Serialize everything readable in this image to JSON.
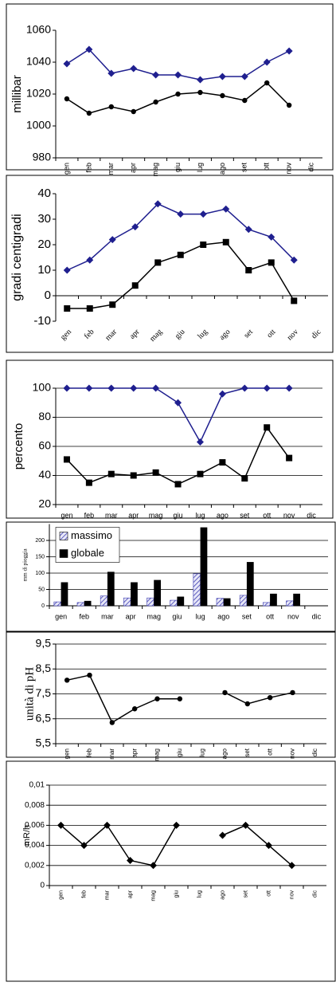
{
  "chart_data": [
    {
      "type": "line",
      "ylabel": "millibar",
      "categories": [
        "gen",
        "feb",
        "mar",
        "apr",
        "mag",
        "giu",
        "lug",
        "ago",
        "set",
        "ott",
        "nov",
        "dic"
      ],
      "ylim": [
        980,
        1060
      ],
      "yticks": [
        980,
        1000,
        1020,
        1040,
        1060
      ],
      "grid": false,
      "series": [
        {
          "color": "#1f1f8f",
          "marker": "diamond",
          "values": [
            1039,
            1048,
            1033,
            1036,
            1032,
            1032,
            1029,
            1031,
            1031,
            1040,
            1047,
            null
          ]
        },
        {
          "color": "#000000",
          "marker": "circle",
          "values": [
            1017,
            1008,
            1012,
            1009,
            1015,
            1020,
            1021,
            1019,
            1016,
            1027,
            1013,
            null
          ]
        }
      ]
    },
    {
      "type": "line",
      "ylabel": "gradi centigradi",
      "categories": [
        "gen",
        "feb",
        "mar",
        "apr",
        "mag",
        "giu",
        "lug",
        "ago",
        "set",
        "ott",
        "nov",
        "dic"
      ],
      "ylim": [
        -10,
        40
      ],
      "yticks": [
        -10,
        0,
        10,
        20,
        30,
        40
      ],
      "grid": false,
      "series": [
        {
          "color": "#1f1f8f",
          "marker": "diamond",
          "values": [
            10,
            14,
            22,
            27,
            36,
            32,
            32,
            34,
            26,
            23,
            14,
            null
          ]
        },
        {
          "color": "#000000",
          "marker": "square",
          "values": [
            -5,
            -5,
            -3.5,
            4,
            13,
            16,
            20,
            21,
            10,
            13,
            -2,
            null
          ]
        }
      ]
    },
    {
      "type": "line",
      "ylabel": "percento",
      "categories": [
        "gen",
        "feb",
        "mar",
        "apr",
        "mag",
        "giu",
        "lug",
        "ago",
        "set",
        "ott",
        "nov",
        "dic"
      ],
      "ylim": [
        20,
        100
      ],
      "yticks": [
        20,
        40,
        60,
        80,
        100
      ],
      "grid": true,
      "series": [
        {
          "color": "#1f1f8f",
          "marker": "diamond",
          "values": [
            100,
            100,
            100,
            100,
            100,
            90,
            63,
            96,
            100,
            100,
            100,
            null
          ]
        },
        {
          "color": "#000000",
          "marker": "square",
          "values": [
            51,
            35,
            41,
            40,
            42,
            34,
            41,
            49,
            38,
            73,
            52,
            null
          ]
        }
      ]
    },
    {
      "type": "bar",
      "ylabel": "mm di pioggia",
      "categories": [
        "gen",
        "feb",
        "mar",
        "apr",
        "mag",
        "giu",
        "lug",
        "ago",
        "set",
        "ott",
        "nov",
        "dic"
      ],
      "ylim": [
        0,
        250
      ],
      "yticks": [
        0,
        50,
        100,
        150,
        200
      ],
      "grid": true,
      "legend": "top-left",
      "series": [
        {
          "name": "massimo",
          "color": "#3b3bb0",
          "pattern": "hatch",
          "values": [
            12,
            10,
            30,
            24,
            24,
            17,
            98,
            23,
            32,
            10,
            15,
            null
          ]
        },
        {
          "name": "globale",
          "color": "#000000",
          "values": [
            72,
            15,
            104,
            72,
            79,
            28,
            240,
            23,
            134,
            37,
            37,
            null
          ]
        }
      ]
    },
    {
      "type": "line",
      "ylabel": "unità di pH",
      "categories": [
        "gen",
        "feb",
        "mar",
        "apr",
        "mag",
        "giu",
        "lug",
        "ago",
        "set",
        "ott",
        "nov",
        "dic"
      ],
      "ylim": [
        5.5,
        9.5
      ],
      "yticks": [
        {
          "value": 5.5,
          "label": "5,5"
        },
        {
          "value": 6.5,
          "label": "6,5"
        },
        {
          "value": 7.5,
          "label": "7,5"
        },
        {
          "value": 8.5,
          "label": "8,5"
        },
        {
          "value": 9.5,
          "label": "9,5"
        }
      ],
      "grid": true,
      "series": [
        {
          "color": "#000000",
          "marker": "circle",
          "values": [
            8.05,
            8.25,
            6.35,
            6.9,
            7.3,
            7.3,
            null,
            7.55,
            7.1,
            7.35,
            7.55,
            null
          ]
        }
      ]
    },
    {
      "type": "line",
      "ylabel": "mR/h",
      "categories": [
        "gen",
        "feb",
        "mar",
        "apr",
        "mag",
        "giu",
        "lug",
        "ago",
        "set",
        "ott",
        "nov",
        "dic"
      ],
      "ylim": [
        0,
        0.01
      ],
      "yticks": [
        0,
        {
          "value": 0.002,
          "label": "0,002"
        },
        {
          "value": 0.004,
          "label": "0,004"
        },
        {
          "value": 0.006,
          "label": "0,006"
        },
        {
          "value": 0.008,
          "label": "0,008"
        },
        {
          "value": 0.01,
          "label": "0,01"
        }
      ],
      "grid": true,
      "series": [
        {
          "color": "#000000",
          "marker": "diamond",
          "values": [
            0.006,
            0.004,
            0.006,
            0.0025,
            0.002,
            0.006,
            null,
            0.005,
            0.006,
            0.004,
            0.002,
            null
          ]
        }
      ]
    }
  ]
}
